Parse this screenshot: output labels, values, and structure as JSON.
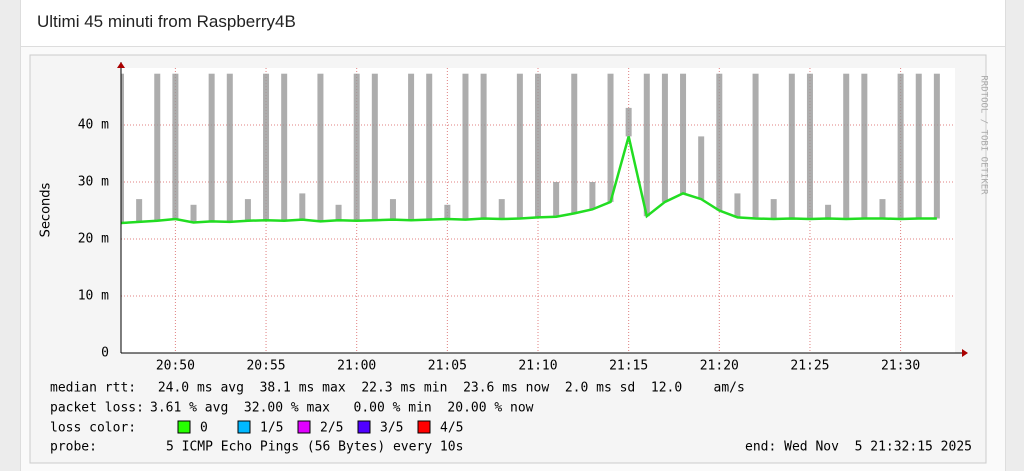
{
  "header": {
    "title": "Ultimi 45 minuti from Raspberry4B"
  },
  "chart_data": {
    "type": "smokeping",
    "y_label": "Seconds",
    "watermark": "RRDTOOL / TOBI OETIKER",
    "xlim": [
      1247,
      1293
    ],
    "xticks": [
      {
        "value": 1250,
        "label": "20:50"
      },
      {
        "value": 1255,
        "label": "20:55"
      },
      {
        "value": 1260,
        "label": "21:00"
      },
      {
        "value": 1265,
        "label": "21:05"
      },
      {
        "value": 1270,
        "label": "21:10"
      },
      {
        "value": 1275,
        "label": "21:15"
      },
      {
        "value": 1280,
        "label": "21:20"
      },
      {
        "value": 1285,
        "label": "21:25"
      },
      {
        "value": 1290,
        "label": "21:30"
      }
    ],
    "ylim": [
      0,
      0.05
    ],
    "yticks": [
      {
        "value": 0,
        "label": "0"
      },
      {
        "value": 0.01,
        "label": "10 m"
      },
      {
        "value": 0.02,
        "label": "20 m"
      },
      {
        "value": 0.03,
        "label": "30 m"
      },
      {
        "value": 0.04,
        "label": "40 m"
      }
    ],
    "grid": true,
    "x": [
      1247,
      1248,
      1249,
      1250,
      1251,
      1252,
      1253,
      1254,
      1255,
      1256,
      1257,
      1258,
      1259,
      1260,
      1261,
      1262,
      1263,
      1264,
      1265,
      1266,
      1267,
      1268,
      1269,
      1270,
      1271,
      1272,
      1273,
      1274,
      1275,
      1276,
      1277,
      1278,
      1279,
      1280,
      1281,
      1282,
      1283,
      1284,
      1285,
      1286,
      1287,
      1288,
      1289,
      1290,
      1291,
      1292
    ],
    "values": [
      0.0228,
      0.023,
      0.0232,
      0.0235,
      0.0229,
      0.0231,
      0.023,
      0.0232,
      0.0233,
      0.0232,
      0.0234,
      0.0231,
      0.0233,
      0.0232,
      0.0233,
      0.0234,
      0.0233,
      0.0234,
      0.0235,
      0.0234,
      0.0236,
      0.0235,
      0.0236,
      0.0238,
      0.0239,
      0.0245,
      0.0252,
      0.0265,
      0.038,
      0.024,
      0.0265,
      0.028,
      0.027,
      0.025,
      0.0238,
      0.0236,
      0.0235,
      0.0236,
      0.0235,
      0.0236,
      0.0235,
      0.0236,
      0.0236,
      0.0235,
      0.0236,
      0.0236
    ],
    "color": "#22dd22",
    "smoke_max": [
      0.049,
      0.027,
      0.049,
      0.049,
      0.026,
      0.049,
      0.049,
      0.027,
      0.049,
      0.049,
      0.028,
      0.049,
      0.026,
      0.049,
      0.049,
      0.027,
      0.049,
      0.049,
      0.026,
      0.049,
      0.049,
      0.027,
      0.049,
      0.049,
      0.03,
      0.049,
      0.03,
      0.049,
      0.043,
      0.049,
      0.049,
      0.049,
      0.038,
      0.049,
      0.028,
      0.049,
      0.027,
      0.049,
      0.049,
      0.026,
      0.049,
      0.049,
      0.027,
      0.049,
      0.049,
      0.049
    ],
    "smoke_color": "#999999",
    "stats": [
      {
        "label": "median rtt:",
        "text": " 24.0 ms avg  38.1 ms max  22.3 ms min  23.6 ms now  2.0 ms sd  12.0    am/s"
      },
      {
        "label": "packet loss:",
        "text": "3.61 % avg  32.00 % max   0.00 % min  20.00 % now"
      }
    ],
    "loss_color": {
      "label": "loss color:",
      "items": [
        {
          "name": "0",
          "color": "#26ff00"
        },
        {
          "name": "1/5",
          "color": "#00b8ff"
        },
        {
          "name": "2/5",
          "color": "#e000ff"
        },
        {
          "name": "3/5",
          "color": "#5000ff"
        },
        {
          "name": "4/5",
          "color": "#ff0000"
        }
      ]
    },
    "probe": {
      "label": "probe:",
      "text": "5 ICMP Echo Pings (56 Bytes) every 10s",
      "end": "end: Wed Nov  5 21:32:15 2025"
    }
  }
}
